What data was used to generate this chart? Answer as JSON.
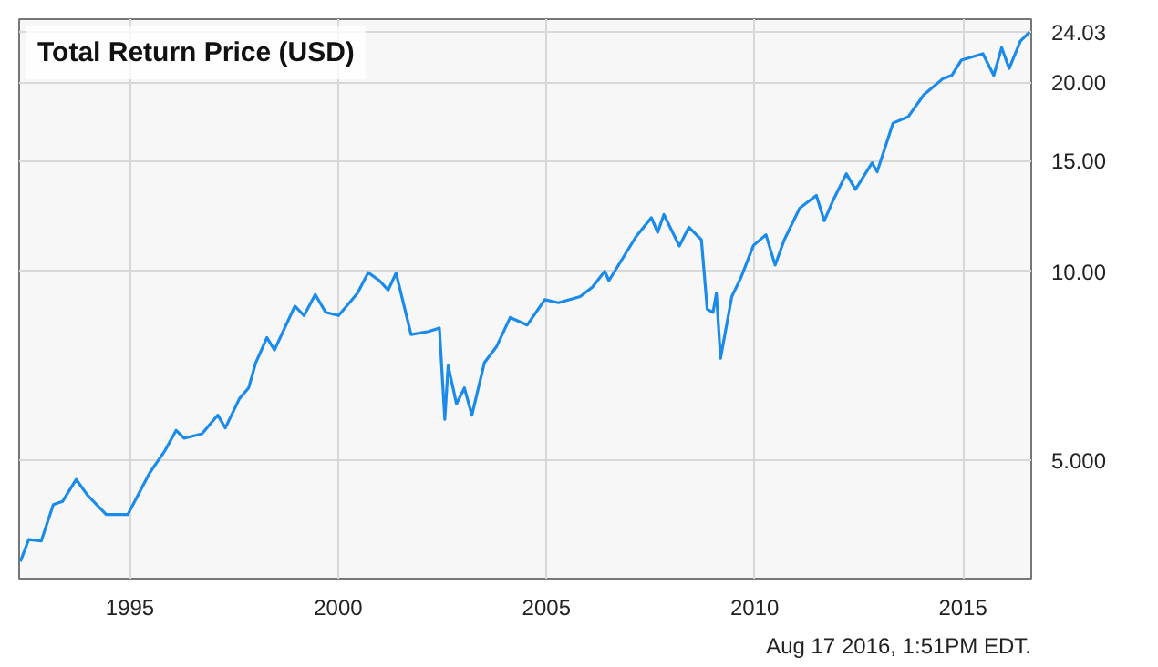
{
  "chart_data": {
    "type": "line",
    "title": "Total Return Price (USD)",
    "x": [
      1992.37,
      1992.57,
      1992.87,
      1993.16,
      1993.38,
      1993.71,
      1993.98,
      1994.43,
      1994.95,
      1995.47,
      1995.84,
      1996.11,
      1996.3,
      1996.73,
      1997.11,
      1997.29,
      1997.63,
      1997.85,
      1998.02,
      1998.29,
      1998.47,
      1998.96,
      1999.18,
      1999.45,
      1999.7,
      2000.01,
      2000.46,
      2000.72,
      2000.99,
      2001.2,
      2001.39,
      2001.75,
      2002.17,
      2002.43,
      2002.56,
      2002.64,
      2002.84,
      2003.03,
      2003.21,
      2003.51,
      2003.8,
      2004.13,
      2004.54,
      2004.96,
      2005.29,
      2005.81,
      2006.1,
      2006.4,
      2006.5,
      2007.15,
      2007.52,
      2007.67,
      2007.82,
      2008.19,
      2008.42,
      2008.72,
      2008.86,
      2009.0,
      2009.08,
      2009.18,
      2009.45,
      2009.67,
      2009.97,
      2010.27,
      2010.49,
      2010.71,
      2011.08,
      2011.48,
      2011.67,
      2011.9,
      2012.2,
      2012.42,
      2012.82,
      2012.94,
      2013.32,
      2013.69,
      2014.06,
      2014.51,
      2014.73,
      2014.96,
      2015.48,
      2015.74,
      2015.93,
      2016.11,
      2016.38,
      2016.6
    ],
    "series": [
      {
        "color": "#1a8bea",
        "values": [
          3.45,
          3.74,
          3.72,
          4.25,
          4.3,
          4.66,
          4.4,
          4.1,
          4.1,
          4.77,
          5.18,
          5.58,
          5.42,
          5.51,
          5.9,
          5.63,
          6.27,
          6.52,
          7.15,
          7.84,
          7.49,
          8.8,
          8.5,
          9.18,
          8.6,
          8.5,
          9.22,
          9.95,
          9.66,
          9.33,
          9.93,
          7.93,
          8.02,
          8.12,
          5.81,
          7.07,
          6.15,
          6.52,
          5.9,
          7.15,
          7.58,
          8.44,
          8.21,
          9.01,
          8.91,
          9.11,
          9.43,
          10.0,
          9.66,
          11.35,
          12.17,
          11.53,
          12.31,
          10.97,
          11.75,
          11.22,
          8.7,
          8.6,
          9.22,
          7.27,
          9.11,
          9.77,
          10.99,
          11.43,
          10.23,
          11.22,
          12.6,
          13.2,
          12.03,
          13.04,
          14.3,
          13.5,
          14.88,
          14.4,
          17.21,
          17.63,
          19.1,
          20.24,
          20.5,
          21.68,
          22.2,
          20.5,
          22.7,
          21.03,
          23.25,
          24.03
        ]
      }
    ],
    "xlim": [
      1992.34,
      2016.64
    ],
    "ylim": [
      3.24,
      25.2
    ],
    "xticks": [
      1995,
      2000,
      2005,
      2010,
      2015
    ],
    "yticks": [
      {
        "value": 5,
        "label": "5.000"
      },
      {
        "value": 10,
        "label": "10.00"
      },
      {
        "value": 15,
        "label": "15.00"
      },
      {
        "value": 20,
        "label": "20.00"
      },
      {
        "value": 24.03,
        "label": "24.03"
      }
    ],
    "log": "y",
    "grid": true,
    "annotations": [
      "Aug 17 2016, 1:51PM EDT."
    ]
  }
}
